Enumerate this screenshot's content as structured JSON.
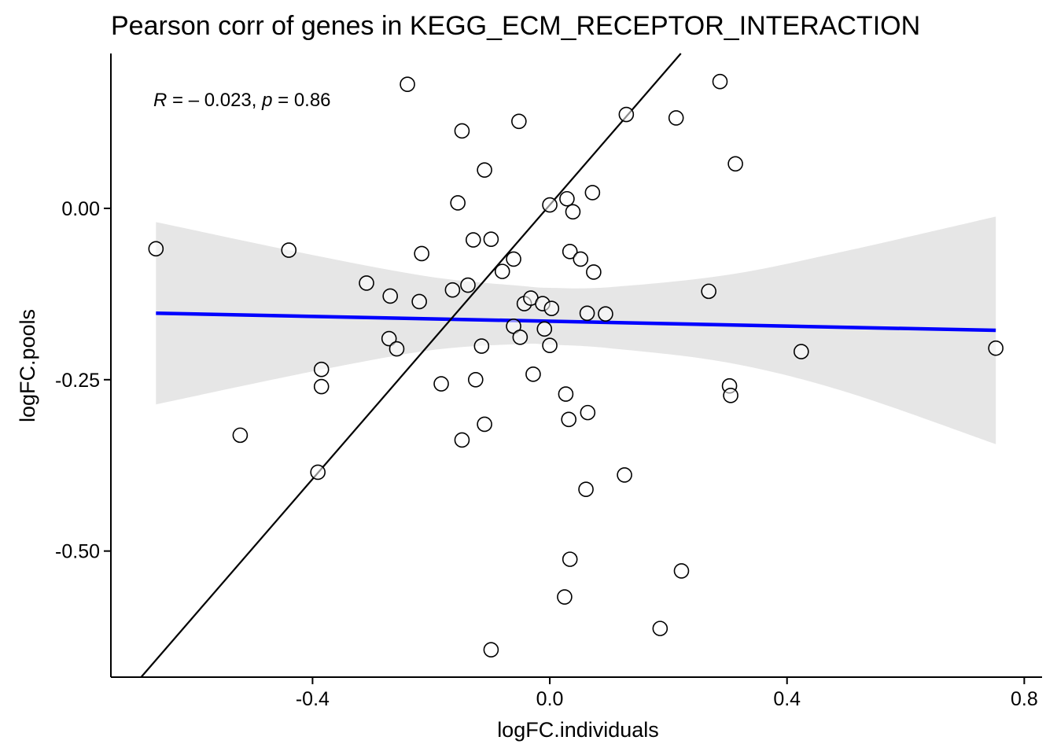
{
  "chart_data": {
    "type": "scatter",
    "title": "Pearson corr of genes in KEGG_ECM_RECEPTOR_INTERACTION",
    "xlabel": "logFC.individuals",
    "ylabel": "logFC.pools",
    "xlim": [
      -0.74,
      0.83
    ],
    "ylim": [
      -0.684,
      0.226
    ],
    "xticks": [
      -0.4,
      0.0,
      0.4,
      0.8
    ],
    "xtick_labels": [
      "-0.4",
      "0.0",
      "0.4",
      "0.8"
    ],
    "yticks": [
      0.0,
      -0.25,
      -0.5
    ],
    "ytick_labels": [
      "0.00",
      "-0.25",
      "-0.50"
    ],
    "annotation": {
      "r_symbol": "R",
      "r_text": " = – 0.023, ",
      "p_symbol": "p",
      "p_text": " = 0.86"
    },
    "grid": false,
    "legend": "none",
    "colors": {
      "regression": "#0000FF",
      "ribbon": "#E6E6E6",
      "identity": "#000000",
      "points_fill": "#FFFFFF",
      "points_stroke": "#000000"
    },
    "regression": {
      "x": [
        -0.664,
        0.752
      ],
      "y": [
        -0.153,
        -0.178
      ]
    },
    "confidence_band": {
      "x": [
        -0.664,
        -0.4,
        -0.2,
        -0.05,
        0.0,
        0.1,
        0.3,
        0.5,
        0.752
      ],
      "upper": [
        -0.02,
        -0.068,
        -0.1,
        -0.113,
        -0.116,
        -0.115,
        -0.097,
        -0.062,
        -0.012
      ],
      "lower": [
        -0.286,
        -0.238,
        -0.207,
        -0.198,
        -0.199,
        -0.204,
        -0.225,
        -0.268,
        -0.344
      ]
    },
    "identity_line": {
      "x": [
        -0.689,
        0.221
      ],
      "y": [
        -0.684,
        0.226
      ]
    },
    "points": [
      {
        "x": -0.664,
        "y": -0.059
      },
      {
        "x": -0.44,
        "y": -0.061
      },
      {
        "x": -0.522,
        "y": -0.331
      },
      {
        "x": -0.385,
        "y": -0.235
      },
      {
        "x": -0.385,
        "y": -0.26
      },
      {
        "x": -0.391,
        "y": -0.385
      },
      {
        "x": -0.309,
        "y": -0.109
      },
      {
        "x": -0.269,
        "y": -0.128
      },
      {
        "x": -0.271,
        "y": -0.19
      },
      {
        "x": -0.258,
        "y": -0.205
      },
      {
        "x": -0.24,
        "y": 0.181
      },
      {
        "x": -0.22,
        "y": -0.136
      },
      {
        "x": -0.216,
        "y": -0.066
      },
      {
        "x": -0.183,
        "y": -0.256
      },
      {
        "x": -0.164,
        "y": -0.119
      },
      {
        "x": -0.155,
        "y": 0.008
      },
      {
        "x": -0.148,
        "y": 0.113
      },
      {
        "x": -0.148,
        "y": -0.338
      },
      {
        "x": -0.138,
        "y": -0.112
      },
      {
        "x": -0.129,
        "y": -0.046
      },
      {
        "x": -0.125,
        "y": -0.25
      },
      {
        "x": -0.115,
        "y": -0.201
      },
      {
        "x": -0.11,
        "y": 0.056
      },
      {
        "x": -0.11,
        "y": -0.315
      },
      {
        "x": -0.099,
        "y": -0.045
      },
      {
        "x": -0.099,
        "y": -0.644
      },
      {
        "x": -0.08,
        "y": -0.092
      },
      {
        "x": -0.061,
        "y": -0.074
      },
      {
        "x": -0.061,
        "y": -0.172
      },
      {
        "x": -0.052,
        "y": 0.127
      },
      {
        "x": -0.05,
        "y": -0.188
      },
      {
        "x": -0.043,
        "y": -0.139
      },
      {
        "x": -0.032,
        "y": -0.131
      },
      {
        "x": -0.028,
        "y": -0.242
      },
      {
        "x": -0.012,
        "y": -0.139
      },
      {
        "x": -0.009,
        "y": -0.176
      },
      {
        "x": 0.0,
        "y": 0.005
      },
      {
        "x": 0.0,
        "y": -0.2
      },
      {
        "x": 0.003,
        "y": -0.146
      },
      {
        "x": 0.025,
        "y": -0.567
      },
      {
        "x": 0.027,
        "y": -0.271
      },
      {
        "x": 0.029,
        "y": 0.014
      },
      {
        "x": 0.032,
        "y": -0.308
      },
      {
        "x": 0.034,
        "y": -0.512
      },
      {
        "x": 0.034,
        "y": -0.063
      },
      {
        "x": 0.039,
        "y": -0.005
      },
      {
        "x": 0.052,
        "y": -0.074
      },
      {
        "x": 0.061,
        "y": -0.41
      },
      {
        "x": 0.063,
        "y": -0.153
      },
      {
        "x": 0.064,
        "y": -0.298
      },
      {
        "x": 0.072,
        "y": 0.023
      },
      {
        "x": 0.074,
        "y": -0.093
      },
      {
        "x": 0.094,
        "y": -0.154
      },
      {
        "x": 0.126,
        "y": -0.389
      },
      {
        "x": 0.129,
        "y": 0.137
      },
      {
        "x": 0.186,
        "y": -0.613
      },
      {
        "x": 0.213,
        "y": 0.132
      },
      {
        "x": 0.222,
        "y": -0.529
      },
      {
        "x": 0.268,
        "y": -0.121
      },
      {
        "x": 0.287,
        "y": 0.185
      },
      {
        "x": 0.303,
        "y": -0.259
      },
      {
        "x": 0.305,
        "y": -0.273
      },
      {
        "x": 0.313,
        "y": 0.065
      },
      {
        "x": 0.424,
        "y": -0.209
      },
      {
        "x": 0.752,
        "y": -0.204
      }
    ]
  }
}
